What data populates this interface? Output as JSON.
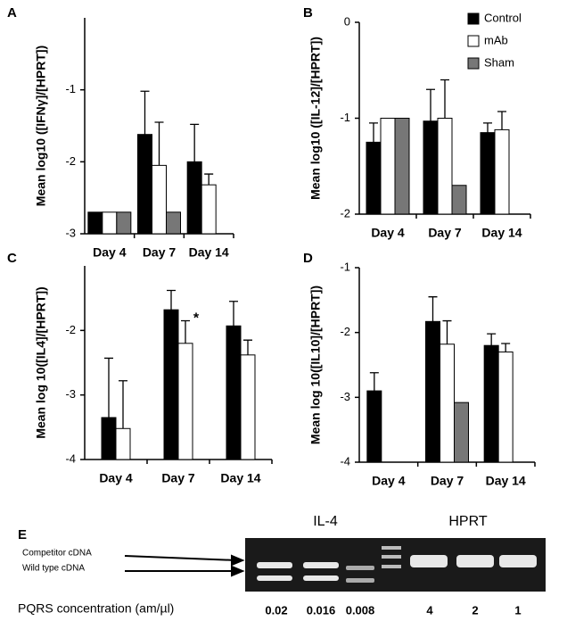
{
  "chart_data": [
    {
      "type": "bar",
      "panel": "A",
      "ylabel": "Mean log10 ([IFNγ]/[HPRT])",
      "categories": [
        "Day 4",
        "Day 7",
        "Day 14"
      ],
      "series": [
        {
          "color": "#000000",
          "values": [
            -2.7,
            -1.62,
            -2.0
          ],
          "errors": [
            null,
            0.6,
            0.52
          ]
        },
        {
          "color": "#ffffff",
          "values": [
            -2.7,
            -2.05,
            -2.32
          ],
          "errors": [
            null,
            0.6,
            0.15
          ]
        },
        {
          "color": "#777777",
          "values": [
            -2.7,
            -2.7,
            null
          ],
          "errors": [
            null,
            null,
            null
          ]
        }
      ],
      "ylim": [
        -3,
        0
      ],
      "yticks": [
        -3,
        -2,
        -1
      ]
    },
    {
      "type": "bar",
      "panel": "B",
      "ylabel": "Mean log10 ([IL-12]/[HPRT])",
      "categories": [
        "Day 4",
        "Day 7",
        "Day 14"
      ],
      "series": [
        {
          "name": "Control",
          "color": "#000000",
          "values": [
            -1.25,
            -1.03,
            -1.15
          ],
          "errors": [
            0.2,
            0.33,
            0.1
          ]
        },
        {
          "name": "mAb",
          "color": "#ffffff",
          "values": [
            -1.0,
            -1.0,
            -1.12
          ],
          "errors": [
            null,
            0.4,
            0.19
          ]
        },
        {
          "name": "Sham",
          "color": "#777777",
          "values": [
            -1.0,
            -1.7,
            null
          ],
          "errors": [
            null,
            null,
            null
          ]
        }
      ],
      "ylim": [
        -2,
        0
      ],
      "yticks": [
        -2,
        -1,
        0
      ],
      "legend": "upper right"
    },
    {
      "type": "bar",
      "panel": "C",
      "ylabel": "Mean log 10([IL4]/[HPRT])",
      "categories": [
        "Day 4",
        "Day 7",
        "Day 14"
      ],
      "series": [
        {
          "color": "#000000",
          "values": [
            -3.35,
            -1.68,
            -1.93
          ],
          "errors": [
            0.92,
            0.3,
            0.38
          ]
        },
        {
          "color": "#ffffff",
          "values": [
            -3.52,
            -2.2,
            -2.38
          ],
          "errors": [
            0.74,
            0.35,
            0.23
          ]
        }
      ],
      "ylim": [
        -4,
        -1
      ],
      "yticks": [
        -4,
        -3,
        -2
      ],
      "annotation": "*"
    },
    {
      "type": "bar",
      "panel": "D",
      "ylabel": "Mean log 10([IL10]/[HPRT])",
      "categories": [
        "Day 4",
        "Day 7",
        "Day 14"
      ],
      "series": [
        {
          "color": "#000000",
          "values": [
            -2.9,
            -1.83,
            -2.2
          ],
          "errors": [
            0.28,
            0.38,
            0.18
          ]
        },
        {
          "color": "#ffffff",
          "values": [
            null,
            -2.18,
            -2.3
          ],
          "errors": [
            null,
            0.36,
            0.13
          ]
        },
        {
          "color": "#777777",
          "values": [
            null,
            -3.08,
            null
          ],
          "errors": [
            null,
            null,
            null
          ]
        }
      ],
      "ylim": [
        -4,
        -1
      ],
      "yticks": [
        -4,
        -3,
        -2,
        -1
      ]
    }
  ],
  "gel": {
    "panel": "E",
    "group1": "IL-4",
    "group2": "HPRT",
    "arrow1": "Competitor cDNA",
    "arrow2": "Wild type cDNA",
    "xlabel": "PQRS concentration (am/µl)",
    "lanes": [
      0.02,
      0.016,
      0.008,
      4,
      2,
      1
    ]
  }
}
